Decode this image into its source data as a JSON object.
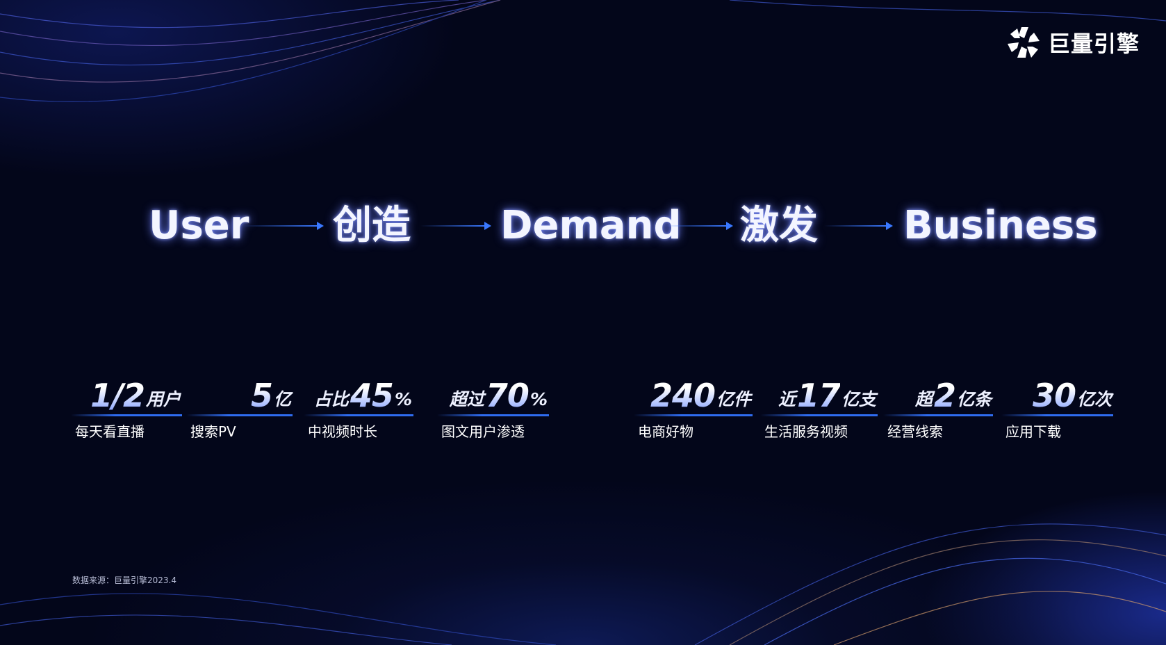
{
  "brand": {
    "name": "巨量引擎",
    "icon": "ocean-engine-logo-icon"
  },
  "flow": [
    {
      "text": "User"
    },
    {
      "text": "创造"
    },
    {
      "text": "Demand"
    },
    {
      "text": "激发"
    },
    {
      "text": "Business"
    }
  ],
  "stats": [
    {
      "prefix": "",
      "value": "1/2",
      "suffix": "用户",
      "label": "每天看直播"
    },
    {
      "prefix": "",
      "value": "5",
      "suffix": "亿",
      "label": "搜索PV"
    },
    {
      "prefix": "占比",
      "value": "45",
      "suffix": "%",
      "label": "中视频时长"
    },
    {
      "prefix": "超过",
      "value": "70",
      "suffix": "%",
      "label": "图文用户渗透"
    },
    {
      "prefix": "",
      "value": "240",
      "suffix": "亿件",
      "label": "电商好物"
    },
    {
      "prefix": "近",
      "value": "17",
      "suffix": "亿支",
      "label": "生活服务视频"
    },
    {
      "prefix": "超",
      "value": "2",
      "suffix": "亿条",
      "label": "经营线索"
    },
    {
      "prefix": "",
      "value": "30",
      "suffix": "亿次",
      "label": "应用下载"
    }
  ],
  "source": "数据来源：巨量引擎2023.4",
  "colors": {
    "accent": "#2f6cf0",
    "background": "#03061a"
  }
}
